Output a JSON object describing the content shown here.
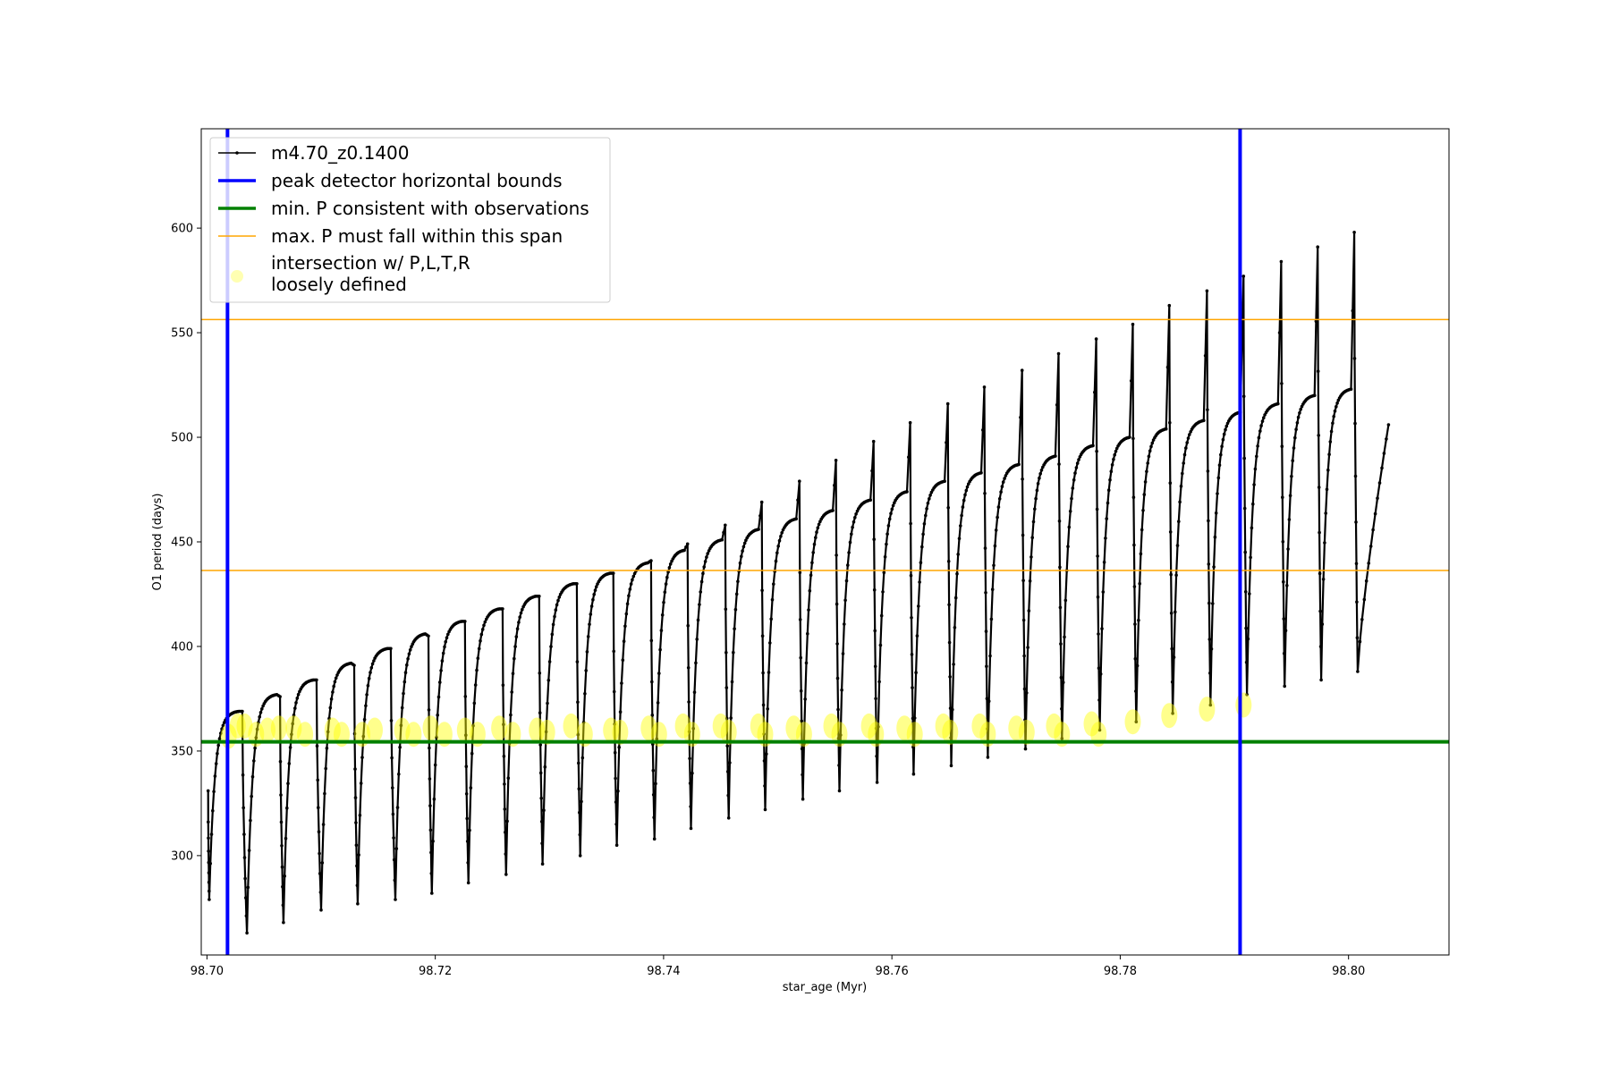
{
  "chart_data": {
    "type": "line",
    "xlabel": "star_age (Myr)",
    "ylabel": "O1 period (days)",
    "xlim": [
      98.6995,
      98.8088
    ],
    "ylim": [
      252.5,
      647.5
    ],
    "xticks": [
      98.7,
      98.72,
      98.74,
      98.76,
      98.78,
      98.8
    ],
    "xtick_labels": [
      "98.70",
      "98.72",
      "98.74",
      "98.76",
      "98.78",
      "98.80"
    ],
    "yticks": [
      300,
      350,
      400,
      450,
      500,
      550,
      600
    ],
    "ytick_labels": [
      "300",
      "350",
      "400",
      "450",
      "500",
      "550",
      "600"
    ],
    "grid": false,
    "legend_position": "top-left",
    "series": [
      {
        "name": "m4.70_z0.1400",
        "kind": "line-with-points",
        "color": "#000000",
        "x_start": 98.7001,
        "x_end": 98.8035,
        "cycle_peaks": [
          {
            "x": 98.7001,
            "y": 331
          },
          {
            "x": 98.7031,
            "y": 369
          },
          {
            "x": 98.7064,
            "y": 376
          },
          {
            "x": 98.7096,
            "y": 384
          },
          {
            "x": 98.7129,
            "y": 391
          },
          {
            "x": 98.7161,
            "y": 399
          },
          {
            "x": 98.7194,
            "y": 405
          },
          {
            "x": 98.7226,
            "y": 412
          },
          {
            "x": 98.7259,
            "y": 418
          },
          {
            "x": 98.7291,
            "y": 424
          },
          {
            "x": 98.7324,
            "y": 430
          },
          {
            "x": 98.7356,
            "y": 435
          },
          {
            "x": 98.7389,
            "y": 441
          },
          {
            "x": 98.7421,
            "y": 449
          },
          {
            "x": 98.7454,
            "y": 458
          },
          {
            "x": 98.7486,
            "y": 469
          },
          {
            "x": 98.7519,
            "y": 479
          },
          {
            "x": 98.7551,
            "y": 489
          },
          {
            "x": 98.7584,
            "y": 498
          },
          {
            "x": 98.7616,
            "y": 507
          },
          {
            "x": 98.7649,
            "y": 516
          },
          {
            "x": 98.7681,
            "y": 524
          },
          {
            "x": 98.7714,
            "y": 532
          },
          {
            "x": 98.7746,
            "y": 540
          },
          {
            "x": 98.7779,
            "y": 547
          },
          {
            "x": 98.7811,
            "y": 554
          },
          {
            "x": 98.7843,
            "y": 563
          },
          {
            "x": 98.7876,
            "y": 570
          },
          {
            "x": 98.7908,
            "y": 577
          },
          {
            "x": 98.7941,
            "y": 584
          },
          {
            "x": 98.7973,
            "y": 591
          },
          {
            "x": 98.8005,
            "y": 598
          }
        ],
        "cycle_troughs": [
          {
            "x": 98.7002,
            "y": 279
          },
          {
            "x": 98.7035,
            "y": 263
          },
          {
            "x": 98.7067,
            "y": 268
          },
          {
            "x": 98.71,
            "y": 274
          },
          {
            "x": 98.7132,
            "y": 277
          },
          {
            "x": 98.7165,
            "y": 279
          },
          {
            "x": 98.7197,
            "y": 282
          },
          {
            "x": 98.7229,
            "y": 287
          },
          {
            "x": 98.7262,
            "y": 291
          },
          {
            "x": 98.7294,
            "y": 296
          },
          {
            "x": 98.7327,
            "y": 300
          },
          {
            "x": 98.7359,
            "y": 305
          },
          {
            "x": 98.7392,
            "y": 308
          },
          {
            "x": 98.7424,
            "y": 313
          },
          {
            "x": 98.7457,
            "y": 318
          },
          {
            "x": 98.7489,
            "y": 322
          },
          {
            "x": 98.7522,
            "y": 327
          },
          {
            "x": 98.7554,
            "y": 331
          },
          {
            "x": 98.7587,
            "y": 335
          },
          {
            "x": 98.7619,
            "y": 339
          },
          {
            "x": 98.7652,
            "y": 343
          },
          {
            "x": 98.7684,
            "y": 347
          },
          {
            "x": 98.7717,
            "y": 351
          },
          {
            "x": 98.7749,
            "y": 356
          },
          {
            "x": 98.7782,
            "y": 360
          },
          {
            "x": 98.7814,
            "y": 364
          },
          {
            "x": 98.7846,
            "y": 368
          },
          {
            "x": 98.7879,
            "y": 372
          },
          {
            "x": 98.7911,
            "y": 377
          },
          {
            "x": 98.7944,
            "y": 381
          },
          {
            "x": 98.7976,
            "y": 384
          },
          {
            "x": 98.8008,
            "y": 388
          }
        ],
        "final_rise_end": {
          "x": 98.8035,
          "y": 506
        }
      },
      {
        "name": "peak detector horizontal bounds",
        "kind": "vline",
        "color": "#0000ff",
        "x": [
          98.7018,
          98.7905
        ]
      },
      {
        "name": "min. P consistent with observations",
        "kind": "hline",
        "color": "#008000",
        "y": 354.4
      },
      {
        "name": "max. P must fall within this span",
        "kind": "hline",
        "color": "#ffa500",
        "y": [
          436.3,
          556.3
        ]
      },
      {
        "name": "intersection w/ P,L,T,R\nloosely defined",
        "kind": "scatter",
        "color": "#ffff00",
        "x": [
          98.7019,
          98.7027,
          98.7033,
          98.7043,
          98.7053,
          98.7063,
          98.7076,
          98.7086,
          98.711,
          98.7118,
          98.7136,
          98.7147,
          98.7171,
          98.7181,
          98.7196,
          98.7208,
          98.7226,
          98.7237,
          98.7256,
          98.7268,
          98.7289,
          98.7298,
          98.7319,
          98.7331,
          98.7354,
          98.7362,
          98.7387,
          98.7396,
          98.7417,
          98.7425,
          98.745,
          98.7457,
          98.7483,
          98.7489,
          98.7514,
          98.7523,
          98.7547,
          98.7554,
          98.758,
          98.7586,
          98.7611,
          98.762,
          98.7645,
          98.7651,
          98.7677,
          98.7684,
          98.7709,
          98.7718,
          98.7742,
          98.7749,
          98.7775,
          98.7781,
          98.7811,
          98.7843,
          98.7876,
          98.7908
        ],
        "y": [
          357,
          362,
          362,
          358,
          360,
          361,
          361,
          358,
          360,
          358,
          358,
          360,
          360,
          358,
          361,
          358,
          360,
          358,
          361,
          358,
          360,
          359,
          362,
          358,
          360,
          359,
          361,
          358,
          362,
          358,
          362,
          359,
          362,
          358,
          361,
          358,
          362,
          358,
          362,
          358,
          361,
          358,
          362,
          359,
          362,
          358,
          361,
          359,
          362,
          358,
          363,
          358,
          364,
          367,
          370,
          372
        ]
      }
    ]
  }
}
